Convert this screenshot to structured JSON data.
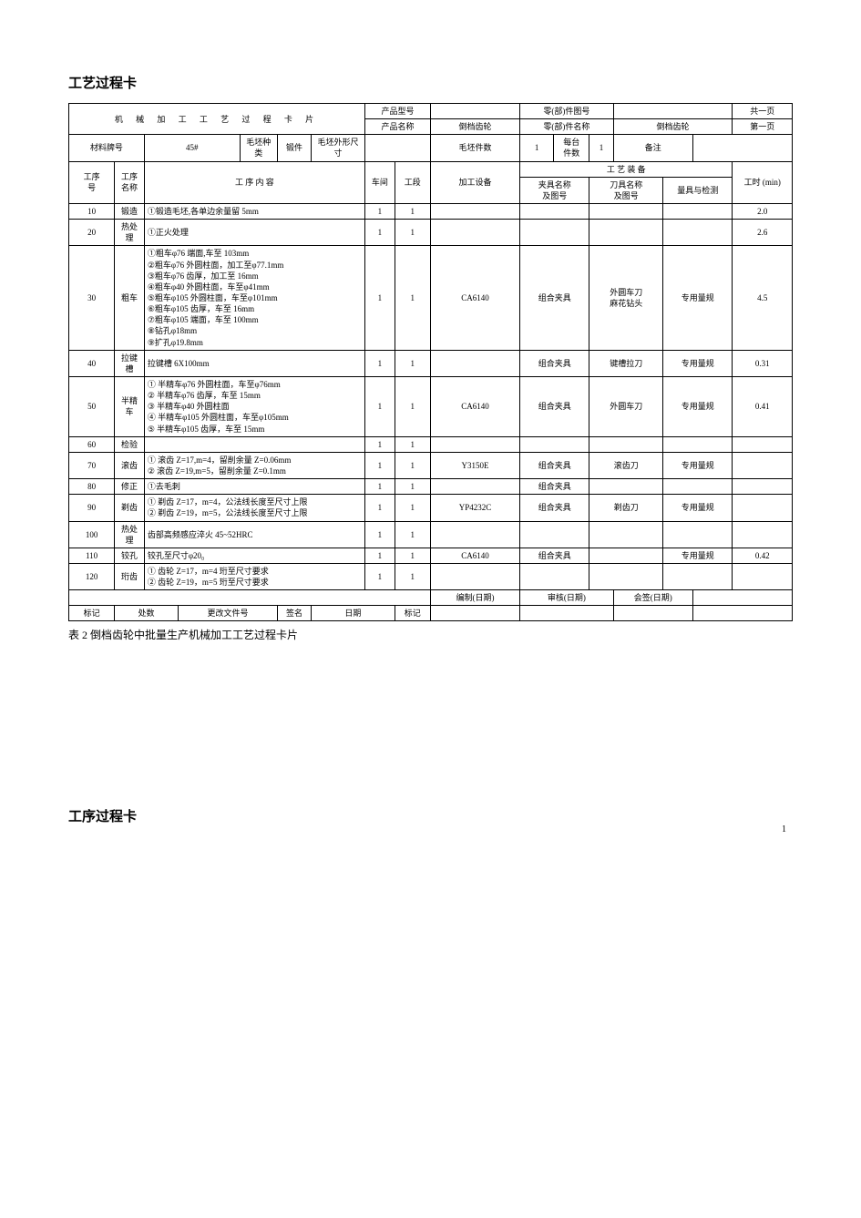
{
  "pageTitle": "工艺过程卡",
  "secondTitle": "工序过程卡",
  "caption": "表 2 倒档齿轮中批量生产机械加工工艺过程卡片",
  "pageNumber": "1",
  "head": {
    "mainTitle": "机 械 加 工 工 艺 过 程 卡 片",
    "prodModelLbl": "产品型号",
    "prodModelVal": "",
    "partModelLbl": "零(部)件图号",
    "partModelVal": "",
    "totalPage": "共一页",
    "prodNameLbl": "产品名称",
    "prodNameVal": "倒档齿轮",
    "partNameLbl": "零(部)件名称",
    "partNameVal": "倒档齿轮",
    "curPage": "第一页",
    "materialLbl": "材料牌号",
    "materialVal": "45#",
    "blankKindLbl": "毛坯种类",
    "blankKindVal": "锻件",
    "blankDimLbl": "毛坯外形尺寸",
    "blankDimVal": "",
    "blankQtyLbl": "毛坯件数",
    "blankQtyVal": "1",
    "perUnitLbl": "每台\n件数",
    "perUnitVal": "1",
    "remarkLbl": "备注",
    "remarkVal": "",
    "seqNoLbl": "工序\n号",
    "seqNameLbl": "工序\n名称",
    "seqContentLbl": "工 序 内 容",
    "workshopLbl": "车间",
    "sectionLbl": "工段",
    "equipLbl": "加工设备",
    "toolingLbl": "工 艺 装 备",
    "fixtureLbl": "夹具名称\n及图号",
    "cutterLbl": "刀具名称\n及图号",
    "gaugeLbl": "量具与检测",
    "timeLbl": "工时 (min)"
  },
  "rows": [
    {
      "no": "10",
      "name": "锻造",
      "content": "①锻造毛坯,各单边余量留 5mm",
      "ws": "1",
      "sec": "1",
      "equip": "",
      "fix": "",
      "cut": "",
      "gauge": "",
      "time": "2.0"
    },
    {
      "no": "20",
      "name": "热处理",
      "content": "①正火处理",
      "ws": "1",
      "sec": "1",
      "equip": "",
      "fix": "",
      "cut": "",
      "gauge": "",
      "time": "2.6"
    },
    {
      "no": "30",
      "name": "粗车",
      "content": "①粗车φ76 端面,车至 103mm\n②粗车φ76 外圆柱面，加工至φ77.1mm\n③粗车φ76 齿厚，加工至 16mm\n④粗车φ40 外圆柱面，车至φ41mm\n⑤粗车φ105 外圆柱面，车至φ101mm\n⑥粗车φ105 齿厚，车至 16mm\n⑦粗车φ105 端面，车至 100mm\n⑧钻孔φ18mm\n⑨扩孔φ19.8mm",
      "ws": "1",
      "sec": "1",
      "equip": "CA6140",
      "fix": "组合夹具",
      "cut": "外圆车刀\n麻花钻头",
      "gauge": "专用量规",
      "time": "4.5"
    },
    {
      "no": "40",
      "name": "拉键槽",
      "content": "拉键槽 6X100mm",
      "ws": "1",
      "sec": "1",
      "equip": "",
      "fix": "组合夹具",
      "cut": "键槽拉刀",
      "gauge": "专用量规",
      "time": "0.31"
    },
    {
      "no": "50",
      "name": "半精车",
      "content": "① 半精车φ76 外圆柱面，车至φ76mm\n② 半精车φ76 齿厚，车至 15mm\n③ 半精车φ40 外圆柱面\n④ 半精车φ105 外圆柱面，车至φ105mm\n⑤ 半精车φ105 齿厚，车至 15mm",
      "ws": "1",
      "sec": "1",
      "equip": "CA6140",
      "fix": "组合夹具",
      "cut": "外圆车刀",
      "gauge": "专用量规",
      "time": "0.41"
    },
    {
      "no": "60",
      "name": "检验",
      "content": "",
      "ws": "1",
      "sec": "1",
      "equip": "",
      "fix": "",
      "cut": "",
      "gauge": "",
      "time": ""
    },
    {
      "no": "70",
      "name": "滚齿",
      "content": "① 滚齿 Z=17,m=4，留削余量 Z=0.06mm\n② 滚齿 Z=19,m=5，留削余量 Z=0.1mm",
      "ws": "1",
      "sec": "1",
      "equip": "Y3150E",
      "fix": "组合夹具",
      "cut": "滚齿刀",
      "gauge": "专用量规",
      "time": ""
    },
    {
      "no": "80",
      "name": "修正",
      "content": "①去毛刺",
      "ws": "1",
      "sec": "1",
      "equip": "",
      "fix": "组合夹具",
      "cut": "",
      "gauge": "",
      "time": ""
    },
    {
      "no": "90",
      "name": "剃齿",
      "content": "① 剃齿 Z=17，m=4，公法线长度至尺寸上限\n② 剃齿 Z=19，m=5，公法线长度至尺寸上限",
      "ws": "1",
      "sec": "1",
      "equip": "YP4232C",
      "fix": "组合夹具",
      "cut": "剃齿刀",
      "gauge": "专用量规",
      "time": ""
    },
    {
      "no": "100",
      "name": "热处理",
      "content": "齿部高频感应淬火 45~52HRC",
      "ws": "1",
      "sec": "1",
      "equip": "",
      "fix": "",
      "cut": "",
      "gauge": "",
      "time": ""
    },
    {
      "no": "110",
      "name": "铰孔",
      "content": "铰孔至尺寸φ20₀",
      "ws": "1",
      "sec": "1",
      "equip": "CA6140",
      "fix": "组合夹具",
      "cut": "",
      "gauge": "专用量规",
      "time": "0.42"
    },
    {
      "no": "120",
      "name": "珩齿",
      "content": "① 齿轮 Z=17，m=4 珩至尺寸要求\n② 齿轮 Z=19，m=5 珩至尺寸要求",
      "ws": "1",
      "sec": "1",
      "equip": "",
      "fix": "",
      "cut": "",
      "gauge": "",
      "time": ""
    }
  ],
  "footer": {
    "compileLbl": "编制(日期)",
    "checkLbl": "审核(日期)",
    "signLbl": "会签(日期)",
    "markLbl": "标记",
    "placeNumLbl": "处数",
    "changeDocLbl": "更改文件号",
    "signatureLbl": "签名",
    "dateLbl": "日期",
    "markLbl2": "标记"
  }
}
